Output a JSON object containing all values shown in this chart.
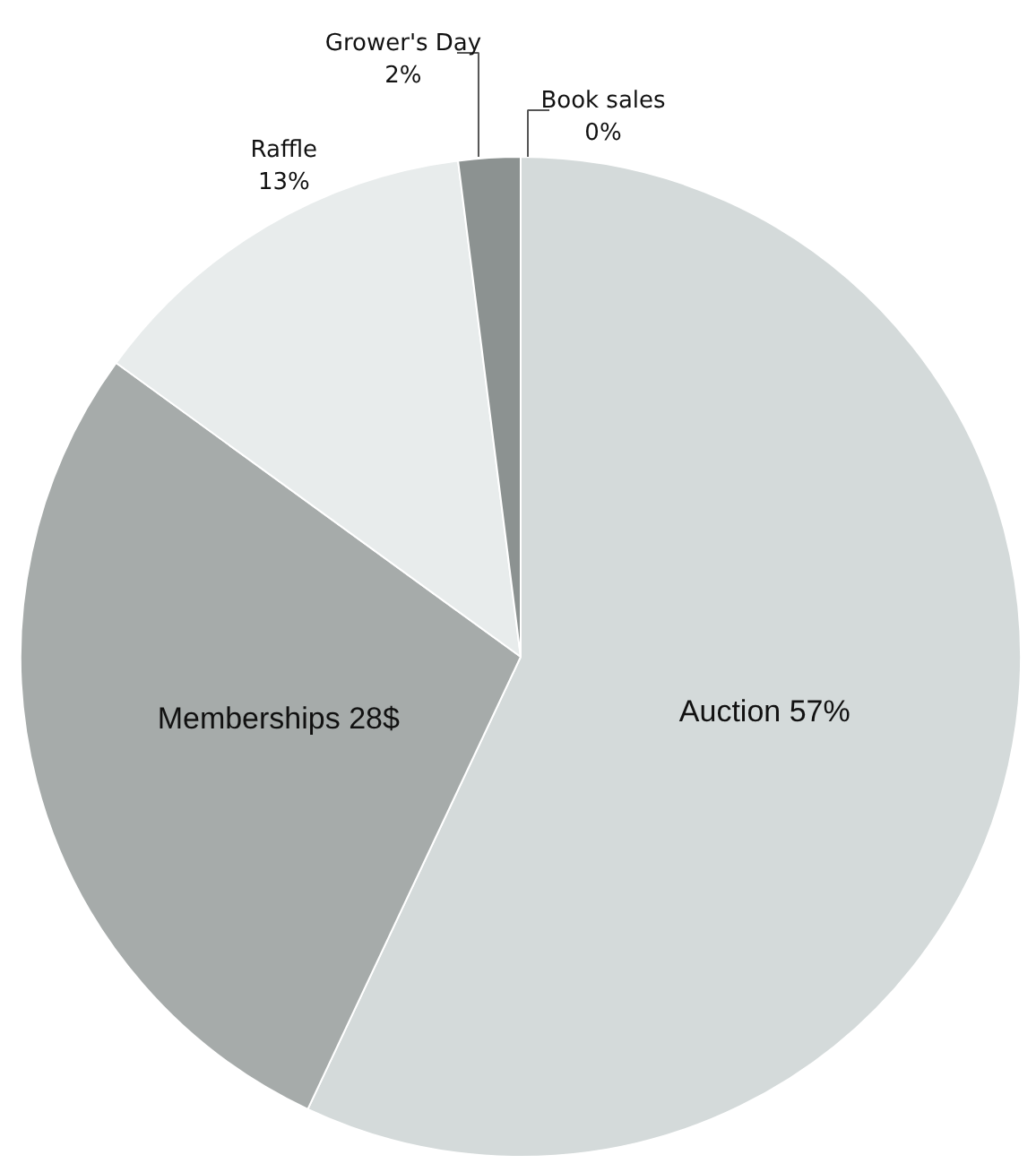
{
  "chart_data": {
    "type": "pie",
    "categories": [
      "Auction",
      "Memberships",
      "Raffle",
      "Grower's Day",
      "Book sales"
    ],
    "values": [
      57,
      28,
      13,
      2,
      0
    ],
    "value_labels": [
      "57%",
      "28$",
      "13%",
      "2%",
      "0%"
    ],
    "colors": [
      "#d4dada",
      "#a6abaa",
      "#e8ecec",
      "#8c9291",
      "#b5baba"
    ]
  }
}
